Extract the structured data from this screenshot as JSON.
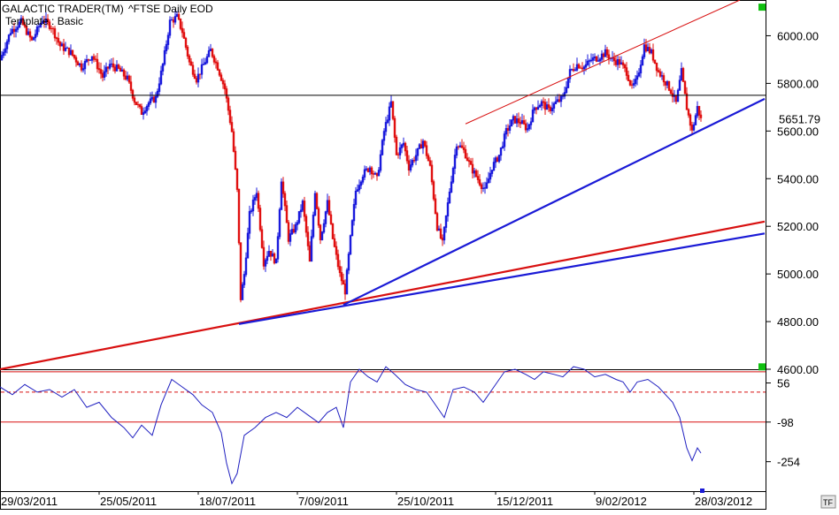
{
  "header": {
    "app_title": "GALACTIC TRADER(TM)",
    "instrument": "^FTSE Daily EOD",
    "template": "Template : Basic"
  },
  "corner_button": "TF",
  "colors": {
    "up_bar": "#1a1adc",
    "down_bar": "#e01010",
    "trendline_blue": "#1a1ad6",
    "trendline_red": "#d81010",
    "oscillator": "#2020c0",
    "oscillator_band": "#d81010",
    "marker": "#10c010"
  },
  "chart_data": [
    {
      "type": "bar",
      "subtype": "ohlc",
      "title": "^FTSE Daily EOD",
      "ylim": [
        4600,
        6150
      ],
      "y_ticks": [
        4600,
        4800,
        5000,
        5200,
        5400,
        5600,
        5800,
        6000
      ],
      "y_tick_labels": [
        "4600.00",
        "4800.00",
        "5000.00",
        "5200.00",
        "5400.00",
        "5600.00",
        "5800.00",
        "6000.00"
      ],
      "last_price": 5651.79,
      "last_price_label": "5651.79",
      "horizontal_line": 5750,
      "x_tick_labels": [
        "29/03/2011",
        "25/05/2011",
        "18/07/2011",
        "7/09/2011",
        "25/10/2011",
        "15/12/2011",
        "9/02/2012",
        "28/03/2012"
      ],
      "close_path": [
        [
          0,
          5900
        ],
        [
          12,
          6020
        ],
        [
          24,
          6060
        ],
        [
          36,
          5980
        ],
        [
          48,
          6070
        ],
        [
          58,
          6040
        ],
        [
          68,
          5960
        ],
        [
          80,
          5930
        ],
        [
          92,
          5870
        ],
        [
          104,
          5920
        ],
        [
          116,
          5830
        ],
        [
          124,
          5880
        ],
        [
          134,
          5860
        ],
        [
          144,
          5820
        ],
        [
          152,
          5730
        ],
        [
          160,
          5680
        ],
        [
          168,
          5720
        ],
        [
          176,
          5740
        ],
        [
          184,
          5880
        ],
        [
          192,
          6060
        ],
        [
          200,
          6080
        ],
        [
          206,
          6020
        ],
        [
          214,
          5890
        ],
        [
          222,
          5820
        ],
        [
          230,
          5880
        ],
        [
          238,
          5940
        ],
        [
          246,
          5870
        ],
        [
          254,
          5780
        ],
        [
          262,
          5600
        ],
        [
          268,
          5350
        ],
        [
          272,
          4900
        ],
        [
          276,
          5000
        ],
        [
          282,
          5250
        ],
        [
          290,
          5350
        ],
        [
          298,
          5050
        ],
        [
          304,
          5100
        ],
        [
          312,
          5050
        ],
        [
          318,
          5400
        ],
        [
          326,
          5150
        ],
        [
          334,
          5200
        ],
        [
          342,
          5300
        ],
        [
          350,
          5050
        ],
        [
          356,
          5350
        ],
        [
          362,
          5150
        ],
        [
          370,
          5300
        ],
        [
          376,
          5150
        ],
        [
          384,
          5000
        ],
        [
          390,
          4930
        ],
        [
          396,
          5150
        ],
        [
          402,
          5350
        ],
        [
          410,
          5420
        ],
        [
          418,
          5450
        ],
        [
          426,
          5400
        ],
        [
          434,
          5600
        ],
        [
          442,
          5720
        ],
        [
          448,
          5500
        ],
        [
          456,
          5550
        ],
        [
          462,
          5450
        ],
        [
          470,
          5500
        ],
        [
          478,
          5560
        ],
        [
          486,
          5450
        ],
        [
          494,
          5200
        ],
        [
          500,
          5130
        ],
        [
          508,
          5350
        ],
        [
          516,
          5550
        ],
        [
          524,
          5520
        ],
        [
          532,
          5450
        ],
        [
          540,
          5400
        ],
        [
          548,
          5350
        ],
        [
          556,
          5450
        ],
        [
          564,
          5500
        ],
        [
          572,
          5600
        ],
        [
          580,
          5650
        ],
        [
          588,
          5640
        ],
        [
          596,
          5610
        ],
        [
          604,
          5700
        ],
        [
          612,
          5720
        ],
        [
          620,
          5690
        ],
        [
          628,
          5720
        ],
        [
          636,
          5740
        ],
        [
          644,
          5850
        ],
        [
          652,
          5880
        ],
        [
          660,
          5870
        ],
        [
          668,
          5900
        ],
        [
          676,
          5910
        ],
        [
          684,
          5930
        ],
        [
          692,
          5900
        ],
        [
          700,
          5890
        ],
        [
          708,
          5850
        ],
        [
          714,
          5780
        ],
        [
          720,
          5820
        ],
        [
          728,
          5960
        ],
        [
          736,
          5930
        ],
        [
          744,
          5850
        ],
        [
          750,
          5820
        ],
        [
          758,
          5770
        ],
        [
          764,
          5720
        ],
        [
          770,
          5850
        ],
        [
          776,
          5700
        ],
        [
          782,
          5600
        ],
        [
          788,
          5700
        ],
        [
          792,
          5652
        ]
      ],
      "trendlines": [
        {
          "color": "red",
          "from": [
            0,
            4600
          ],
          "to": [
            864,
            5220
          ]
        },
        {
          "color": "blue",
          "from": [
            270,
            4790
          ],
          "to": [
            864,
            5170
          ]
        },
        {
          "color": "blue",
          "from": [
            388,
            4870
          ],
          "to": [
            864,
            5735
          ]
        },
        {
          "color": "red",
          "from": [
            526,
            5630
          ],
          "to": [
            836,
            6150
          ]
        }
      ],
      "markers": [
        {
          "x": 860,
          "y": 6120,
          "color": "green"
        },
        {
          "x": 860,
          "y": 4610,
          "color": "green"
        }
      ]
    },
    {
      "type": "line",
      "title": "",
      "ylim": [
        -370,
        110
      ],
      "y_ticks": [
        56,
        -98,
        -254
      ],
      "y_tick_labels": [
        "56",
        "-98",
        "-254"
      ],
      "band_lines": [
        {
          "value": 100,
          "style": "solid"
        },
        {
          "value": 20,
          "style": "dashed"
        },
        {
          "value": -98,
          "style": "solid"
        }
      ],
      "points": [
        [
          0,
          40
        ],
        [
          14,
          10
        ],
        [
          28,
          50
        ],
        [
          42,
          20
        ],
        [
          56,
          30
        ],
        [
          70,
          0
        ],
        [
          84,
          30
        ],
        [
          98,
          -40
        ],
        [
          112,
          -20
        ],
        [
          126,
          -80
        ],
        [
          140,
          -120
        ],
        [
          150,
          -160
        ],
        [
          160,
          -110
        ],
        [
          172,
          -150
        ],
        [
          182,
          -30
        ],
        [
          194,
          70
        ],
        [
          206,
          40
        ],
        [
          218,
          10
        ],
        [
          228,
          -30
        ],
        [
          240,
          -60
        ],
        [
          250,
          -140
        ],
        [
          256,
          -260
        ],
        [
          262,
          -340
        ],
        [
          268,
          -300
        ],
        [
          276,
          -150
        ],
        [
          288,
          -120
        ],
        [
          300,
          -80
        ],
        [
          312,
          -60
        ],
        [
          324,
          -80
        ],
        [
          336,
          -40
        ],
        [
          348,
          -70
        ],
        [
          360,
          -100
        ],
        [
          370,
          -60
        ],
        [
          380,
          -40
        ],
        [
          388,
          -120
        ],
        [
          396,
          60
        ],
        [
          406,
          110
        ],
        [
          416,
          80
        ],
        [
          426,
          60
        ],
        [
          436,
          120
        ],
        [
          446,
          90
        ],
        [
          458,
          50
        ],
        [
          470,
          30
        ],
        [
          482,
          20
        ],
        [
          494,
          -40
        ],
        [
          502,
          -80
        ],
        [
          512,
          30
        ],
        [
          524,
          40
        ],
        [
          536,
          20
        ],
        [
          546,
          -20
        ],
        [
          558,
          40
        ],
        [
          570,
          100
        ],
        [
          582,
          110
        ],
        [
          594,
          90
        ],
        [
          604,
          70
        ],
        [
          614,
          100
        ],
        [
          626,
          90
        ],
        [
          636,
          80
        ],
        [
          648,
          120
        ],
        [
          660,
          110
        ],
        [
          672,
          80
        ],
        [
          684,
          90
        ],
        [
          696,
          70
        ],
        [
          704,
          60
        ],
        [
          712,
          20
        ],
        [
          720,
          60
        ],
        [
          732,
          70
        ],
        [
          744,
          40
        ],
        [
          752,
          10
        ],
        [
          760,
          -20
        ],
        [
          768,
          -80
        ],
        [
          776,
          -200
        ],
        [
          782,
          -250
        ],
        [
          788,
          -200
        ],
        [
          792,
          -220
        ]
      ]
    }
  ]
}
